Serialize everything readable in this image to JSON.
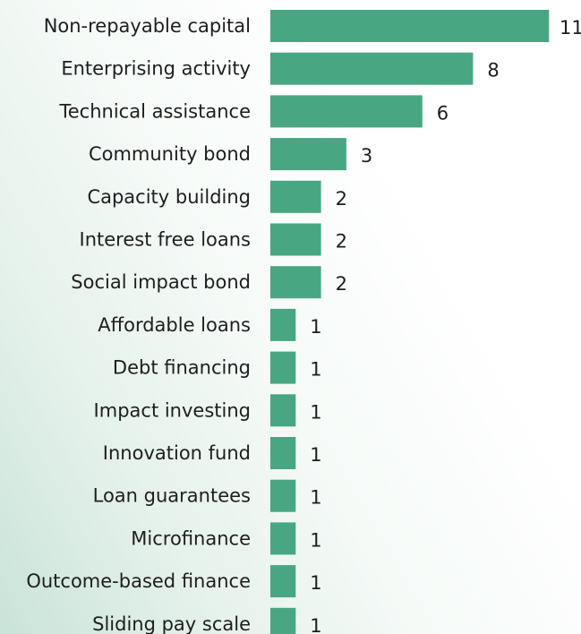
{
  "chart_data": {
    "type": "bar",
    "orientation": "horizontal",
    "categories": [
      "Non-repayable capital",
      "Enterprising activity",
      "Technical assistance",
      "Community bond",
      "Capacity building",
      "Interest free loans",
      "Social impact bond",
      "Affordable loans",
      "Debt financing",
      "Impact investing",
      "Innovation fund",
      "Loan guarantees",
      "Microfinance",
      "Outcome-based finance",
      "Sliding pay scale"
    ],
    "values": [
      11,
      8,
      6,
      3,
      2,
      2,
      2,
      1,
      1,
      1,
      1,
      1,
      1,
      1,
      1
    ],
    "title": "",
    "xlabel": "",
    "ylabel": "",
    "xlim": [
      0,
      11
    ],
    "grid": false,
    "legend": "none",
    "bar_color": "#48a683"
  }
}
